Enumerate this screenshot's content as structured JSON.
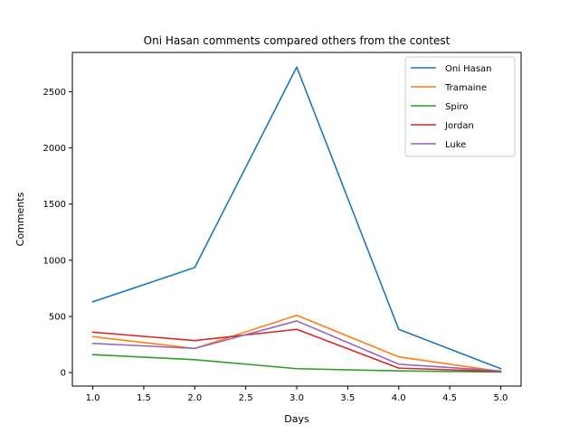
{
  "chart_data": {
    "type": "line",
    "title": "Oni Hasan comments compared others from the contest",
    "xlabel": "Days",
    "ylabel": "Comments",
    "xlim": [
      0.8,
      5.2
    ],
    "ylim": [
      -120,
      2850
    ],
    "x_ticks": [
      1.0,
      1.5,
      2.0,
      2.5,
      3.0,
      3.5,
      4.0,
      4.5,
      5.0
    ],
    "x_tick_labels": [
      "1.0",
      "1.5",
      "2.0",
      "2.5",
      "3.0",
      "3.5",
      "4.0",
      "4.5",
      "5.0"
    ],
    "y_ticks": [
      0,
      500,
      1000,
      1500,
      2000,
      2500
    ],
    "y_tick_labels": [
      "0",
      "500",
      "1000",
      "1500",
      "2000",
      "2500"
    ],
    "grid": false,
    "legend_position": "upper right",
    "x": [
      1,
      2,
      3,
      4,
      5
    ],
    "series": [
      {
        "name": "Oni Hasan",
        "color": "#1f77b4",
        "values": [
          630,
          935,
          2720,
          385,
          35
        ]
      },
      {
        "name": "Tramaine",
        "color": "#ff7f0e",
        "values": [
          320,
          215,
          510,
          140,
          10
        ]
      },
      {
        "name": "Spiro",
        "color": "#2ca02c",
        "values": [
          160,
          115,
          35,
          15,
          5
        ]
      },
      {
        "name": "Jordan",
        "color": "#d62728",
        "values": [
          360,
          285,
          385,
          40,
          10
        ]
      },
      {
        "name": "Luke",
        "color": "#9467bd",
        "values": [
          260,
          215,
          460,
          75,
          15
        ]
      }
    ]
  }
}
